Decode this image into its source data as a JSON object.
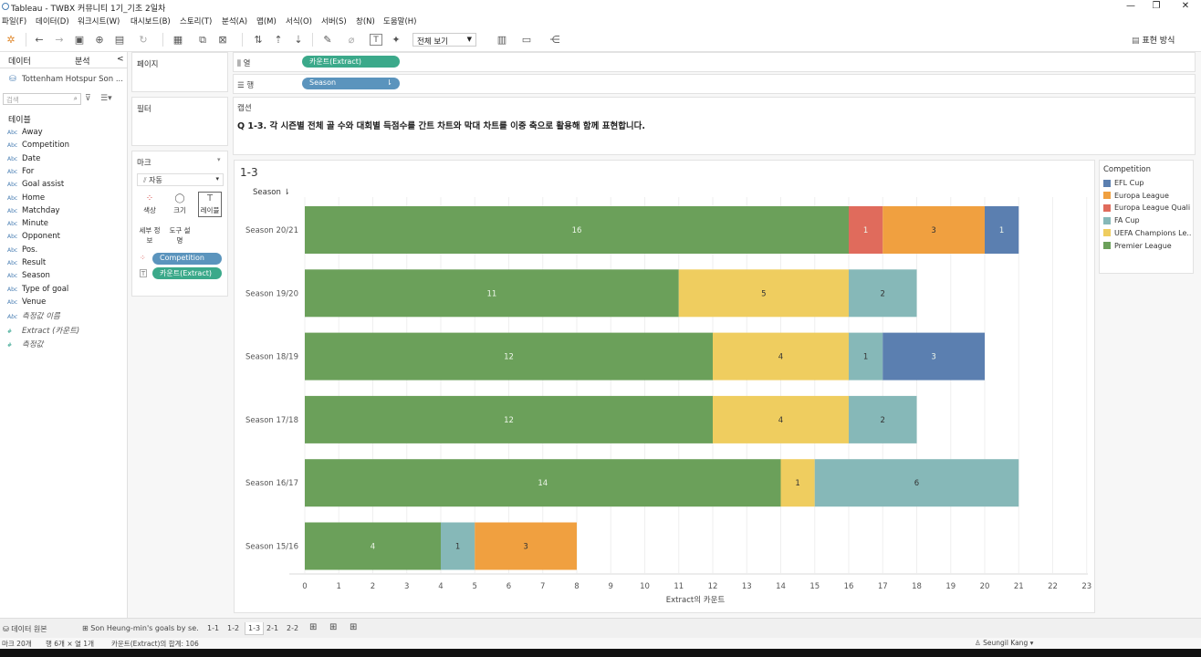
{
  "window": {
    "title": "Tableau - TWBX 커뮤니티 1기_기초 2일차",
    "controls": [
      "—",
      "❐",
      "✕"
    ]
  },
  "menu": [
    "파일(F)",
    "데이터(D)",
    "워크시트(W)",
    "대시보드(B)",
    "스토리(T)",
    "분석(A)",
    "맵(M)",
    "서식(O)",
    "서버(S)",
    "창(N)",
    "도움말(H)"
  ],
  "toolbar": {
    "view_select": "전체 보기",
    "show_me": "표현 방식"
  },
  "data_panel": {
    "tab_data": "데이터",
    "tab_analysis": "분석",
    "collapse": "<",
    "datasource": "Tottenham Hotspur Son ...",
    "search_placeholder": "검색",
    "tables_label": "테이블",
    "dim_type": "Abc",
    "fields": [
      "Away",
      "Competition",
      "Date",
      "For",
      "Goal assist",
      "Home",
      "Matchday",
      "Minute",
      "Opponent",
      "Pos.",
      "Result",
      "Season",
      "Type of goal",
      "Venue"
    ],
    "italic_dim": "측정값 이름",
    "measures": [
      "Extract (카운트)",
      "측정값"
    ]
  },
  "cards": {
    "pages": "페이지",
    "filters": "필터",
    "marks": "마크",
    "mark_type": "자동",
    "mark_buttons": {
      "color": "색상",
      "size": "크기",
      "label": "레이블",
      "detail": "세부 정보",
      "tooltip": "도구 설명"
    },
    "mark_pills": {
      "competition": "Competition",
      "count": "카운트(Extract)"
    }
  },
  "shelves": {
    "columns_label": "열",
    "rows_label": "행",
    "columns_pill": "카운트(Extract)",
    "rows_pill": "Season"
  },
  "caption": {
    "label": "캡션",
    "text": "Q 1-3. 각 시즌별 전체 골 수와 대회별 득점수를 간트 차트와 막대 차트를 이중 축으로 활용해 함께 표현합니다."
  },
  "sheet": {
    "title": "1-3",
    "row_header": "Season"
  },
  "legend": {
    "title": "Competition",
    "items": [
      {
        "name": "EFL Cup",
        "color": "#5b7fb0"
      },
      {
        "name": "Europa League",
        "color": "#f0a040"
      },
      {
        "name": "Europa League Quali...",
        "color": "#e06b5c"
      },
      {
        "name": "FA Cup",
        "color": "#86b8b8"
      },
      {
        "name": "UEFA Champions Le...",
        "color": "#efcd5f"
      },
      {
        "name": "Premier League",
        "color": "#6ba05a"
      }
    ]
  },
  "chart_data": {
    "type": "bar",
    "orientation": "horizontal",
    "stacked": true,
    "categories": [
      "Season 20/21",
      "Season 19/20",
      "Season 18/19",
      "Season 17/18",
      "Season 16/17",
      "Season 15/16"
    ],
    "series": [
      {
        "name": "Premier League",
        "color": "#6ba05a",
        "values": [
          16,
          11,
          12,
          12,
          14,
          4
        ]
      },
      {
        "name": "Europa League Quali...",
        "color": "#e06b5c",
        "values": [
          1,
          0,
          0,
          0,
          0,
          0
        ]
      },
      {
        "name": "UEFA Champions Le...",
        "color": "#efcd5f",
        "values": [
          0,
          5,
          4,
          4,
          1,
          0
        ]
      },
      {
        "name": "FA Cup",
        "color": "#86b8b8",
        "values": [
          0,
          2,
          1,
          2,
          6,
          1
        ]
      },
      {
        "name": "Europa League",
        "color": "#f0a040",
        "values": [
          3,
          0,
          0,
          0,
          0,
          3
        ]
      },
      {
        "name": "EFL Cup",
        "color": "#5b7fb0",
        "values": [
          1,
          0,
          3,
          0,
          0,
          0
        ]
      }
    ],
    "xlabel": "Extract의 카운트",
    "xlim": [
      0,
      23
    ],
    "xticks": [
      0,
      1,
      2,
      3,
      4,
      5,
      6,
      7,
      8,
      9,
      10,
      11,
      12,
      13,
      14,
      15,
      16,
      17,
      18,
      19,
      20,
      21,
      22,
      23
    ],
    "grid": true
  },
  "bottom_tabs": {
    "datasource": "데이터 원본",
    "sheets": [
      "Son Heung-min's goals by se...",
      "1-1",
      "1-2",
      "1-3",
      "2-1",
      "2-2"
    ],
    "active": "1-3"
  },
  "status": {
    "marks": "마크 20개",
    "dims": "행 6개 × 열 1개",
    "sum": "카운트(Extract)의 합계: 106",
    "user": "Seungil Kang"
  }
}
